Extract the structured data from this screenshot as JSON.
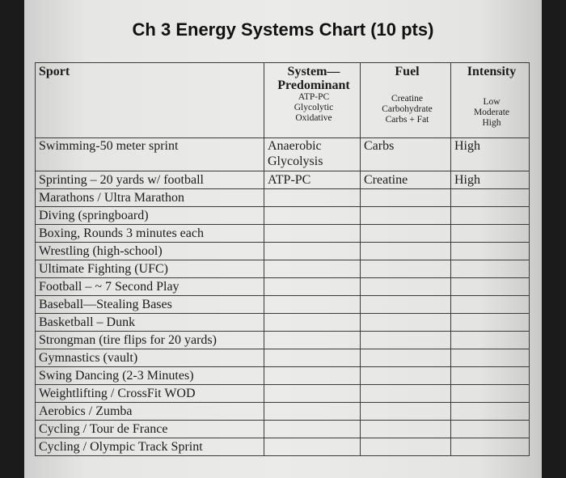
{
  "title": "Ch 3 Energy Systems Chart (10 pts)",
  "headers": {
    "sport": "Sport",
    "system_line1": "System—",
    "system_line2": "Predominant",
    "system_opts": [
      "ATP-PC",
      "Glycolytic",
      "Oxidative"
    ],
    "fuel": "Fuel",
    "fuel_opts": [
      "Creatine",
      "Carbohydrate",
      "Carbs + Fat"
    ],
    "intensity": "Intensity",
    "intensity_opts": [
      "Low",
      "Moderate",
      "High"
    ]
  },
  "rows": [
    {
      "sport": "Swimming-50 meter sprint",
      "system": "Anaerobic Glycolysis",
      "fuel": "Carbs",
      "intensity": "High"
    },
    {
      "sport": "Sprinting – 20 yards w/ football",
      "system": "ATP-PC",
      "fuel": "Creatine",
      "intensity": "High"
    },
    {
      "sport": "Marathons / Ultra Marathon",
      "system": "",
      "fuel": "",
      "intensity": ""
    },
    {
      "sport": "Diving (springboard)",
      "system": "",
      "fuel": "",
      "intensity": ""
    },
    {
      "sport": "Boxing, Rounds 3 minutes each",
      "system": "",
      "fuel": "",
      "intensity": ""
    },
    {
      "sport": "Wrestling (high-school)",
      "system": "",
      "fuel": "",
      "intensity": ""
    },
    {
      "sport": "Ultimate Fighting (UFC)",
      "system": "",
      "fuel": "",
      "intensity": ""
    },
    {
      "sport": "Football – ~ 7 Second Play",
      "system": "",
      "fuel": "",
      "intensity": ""
    },
    {
      "sport": "Baseball—Stealing Bases",
      "system": "",
      "fuel": "",
      "intensity": ""
    },
    {
      "sport": "Basketball – Dunk",
      "system": "",
      "fuel": "",
      "intensity": ""
    },
    {
      "sport": "Strongman (tire flips for 20 yards)",
      "system": "",
      "fuel": "",
      "intensity": ""
    },
    {
      "sport": "Gymnastics (vault)",
      "system": "",
      "fuel": "",
      "intensity": ""
    },
    {
      "sport": "Swing Dancing (2-3 Minutes)",
      "system": "",
      "fuel": "",
      "intensity": ""
    },
    {
      "sport": "Weightlifting / CrossFit WOD",
      "system": "",
      "fuel": "",
      "intensity": ""
    },
    {
      "sport": "Aerobics / Zumba",
      "system": "",
      "fuel": "",
      "intensity": ""
    },
    {
      "sport": "Cycling / Tour de France",
      "system": "",
      "fuel": "",
      "intensity": ""
    },
    {
      "sport": "Cycling / Olympic Track Sprint",
      "system": "",
      "fuel": "",
      "intensity": ""
    }
  ]
}
